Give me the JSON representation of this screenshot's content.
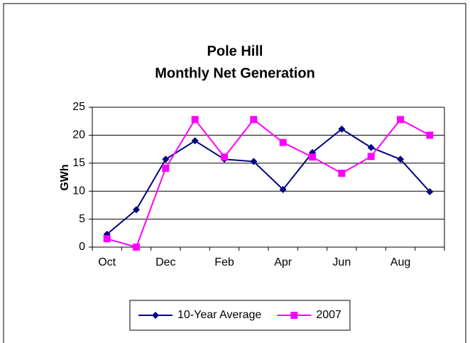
{
  "chart_data": {
    "type": "line",
    "title": "Pole Hill",
    "subtitle": "Monthly Net Generation",
    "y_label": "GWh",
    "categories": [
      "Oct",
      null,
      "Dec",
      null,
      "Feb",
      null,
      "Apr",
      null,
      "Jun",
      null,
      "Aug",
      null
    ],
    "series": [
      {
        "name": "10-Year Average",
        "color": "#000080",
        "marker": "diamond",
        "values": [
          2.3,
          6.7,
          15.7,
          19.0,
          15.7,
          15.3,
          10.3,
          16.9,
          21.1,
          17.8,
          15.7,
          9.9
        ]
      },
      {
        "name": "2007",
        "color": "#ff00ff",
        "marker": "square",
        "values": [
          1.5,
          0,
          14.1,
          22.8,
          16.1,
          22.8,
          18.7,
          16.1,
          13.2,
          16.2,
          22.8,
          20.0
        ]
      }
    ],
    "ylim": [
      0,
      25
    ],
    "yticks": [
      0,
      5,
      10,
      15,
      20,
      25
    ],
    "grid": true,
    "legend": "bottom"
  }
}
